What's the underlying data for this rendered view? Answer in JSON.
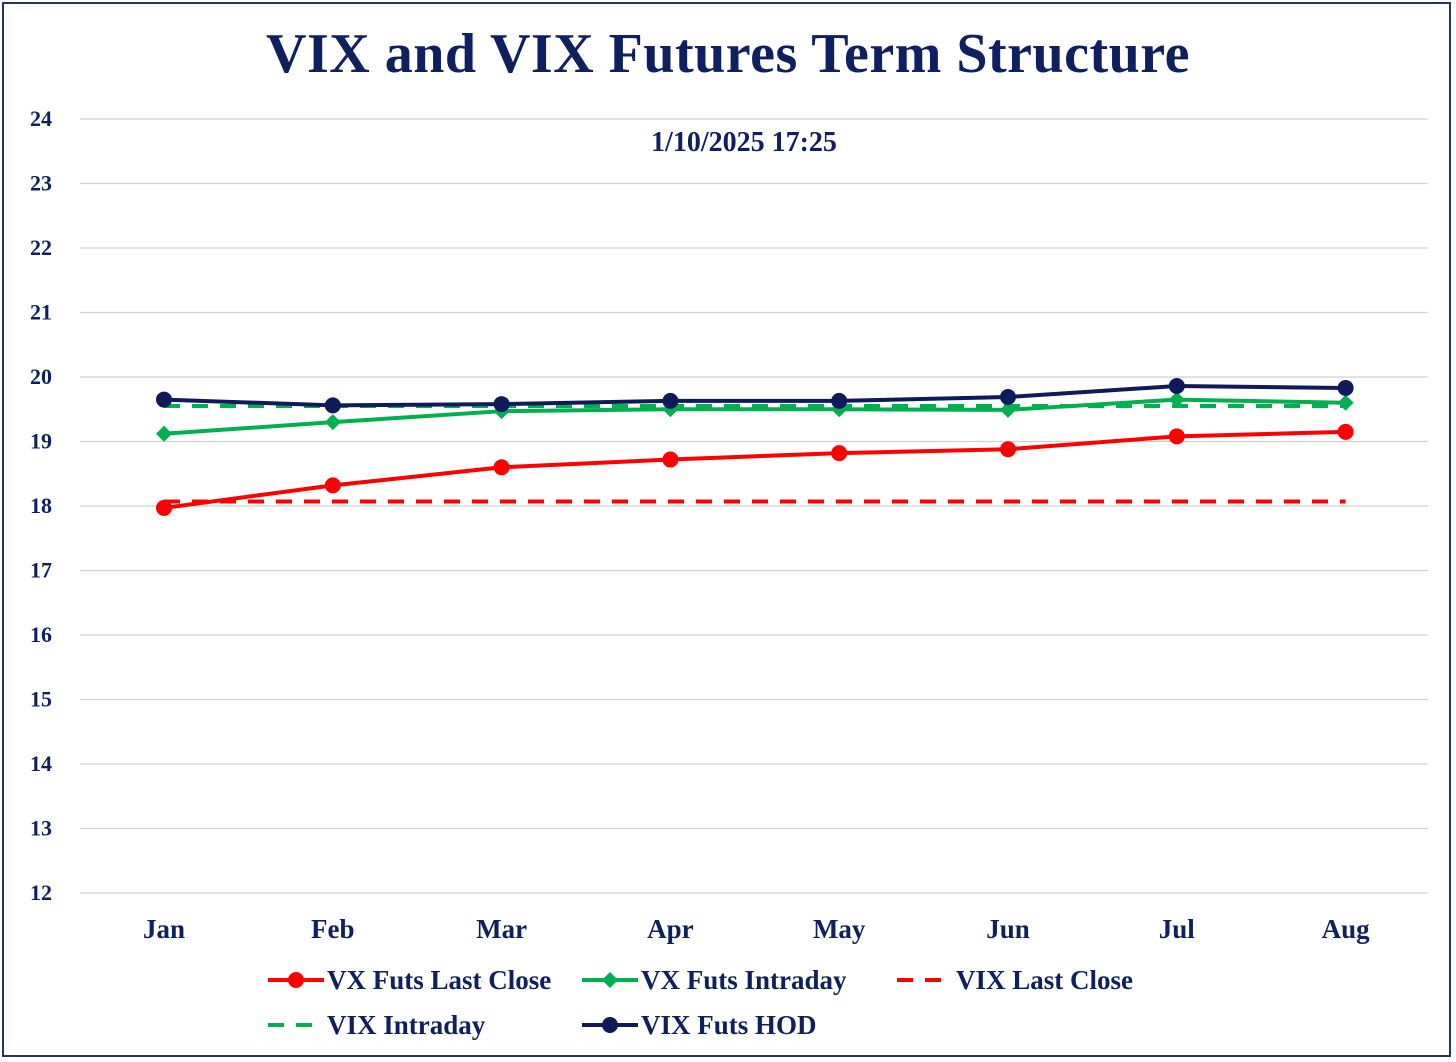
{
  "chart_data": {
    "type": "line",
    "title": "VIX and VIX Futures Term Structure",
    "annotation": "1/10/2025 17:25",
    "categories": [
      "Jan",
      "Feb",
      "Mar",
      "Apr",
      "May",
      "Jun",
      "Jul",
      "Aug"
    ],
    "ylim": [
      12,
      24
    ],
    "yticks": [
      12,
      13,
      14,
      15,
      16,
      17,
      18,
      19,
      20,
      21,
      22,
      23,
      24
    ],
    "grid": true,
    "legend_position": "bottom",
    "series": [
      {
        "name": "VX Futs Last Close",
        "color": "#ff0000",
        "style": "solid",
        "marker": "circle",
        "values": [
          17.97,
          18.32,
          18.6,
          18.72,
          18.82,
          18.88,
          19.08,
          19.15
        ]
      },
      {
        "name": "VX Futs Intraday",
        "color": "#00b050",
        "style": "solid",
        "marker": "diamond",
        "values": [
          19.12,
          19.3,
          19.47,
          19.5,
          19.5,
          19.49,
          19.65,
          19.6
        ]
      },
      {
        "name": "VIX Last Close",
        "color": "#ff0000",
        "style": "dashed",
        "marker": "none",
        "values": [
          18.07,
          18.07,
          18.07,
          18.07,
          18.07,
          18.07,
          18.07,
          18.07
        ]
      },
      {
        "name": "VIX Intraday",
        "color": "#00b050",
        "style": "dashed",
        "marker": "none",
        "values": [
          19.55,
          19.55,
          19.55,
          19.55,
          19.55,
          19.55,
          19.55,
          19.55
        ]
      },
      {
        "name": "VIX Futs HOD",
        "color": "#0e1a5a",
        "style": "solid",
        "marker": "circle",
        "values": [
          19.65,
          19.56,
          19.58,
          19.63,
          19.63,
          19.69,
          19.86,
          19.83
        ]
      }
    ]
  }
}
